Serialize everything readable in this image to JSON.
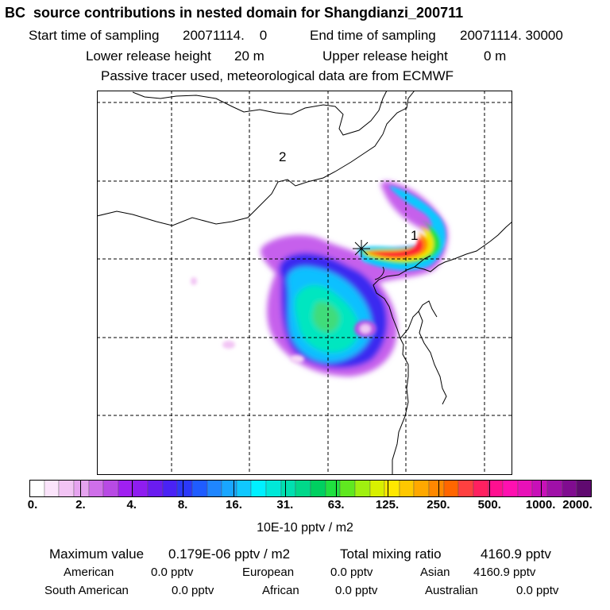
{
  "header": {
    "title": "BC  source contributions in nested domain for Shangdianzi_200711",
    "start_label": "Start time of sampling",
    "start_value": "20071114.    0",
    "end_label": "End time of sampling",
    "end_value": "20071114. 30000",
    "lower_label": "Lower release height",
    "lower_value": "20 m",
    "upper_label": "Upper release height",
    "upper_value": "0 m",
    "tracer_note": "Passive tracer used, meteorological data are from ECMWF"
  },
  "map": {
    "region_labels": [
      {
        "text": "1"
      },
      {
        "text": "2"
      }
    ]
  },
  "colorbar": {
    "ticks": [
      "0.",
      "2.",
      "4.",
      "8.",
      "16.",
      "31.",
      "63.",
      "125.",
      "250.",
      "500.",
      "1000.",
      "2000."
    ],
    "unit": "10E-10 pptv / m2",
    "colors": [
      "#ffffff",
      "#fbe4fb",
      "#f2c4f4",
      "#e6a3ef",
      "#cf6fe9",
      "#b84ae4",
      "#a020f0",
      "#8f1df0",
      "#6a1cf0",
      "#4a22f5",
      "#2b38fa",
      "#1f5cff",
      "#1f86ff",
      "#19a6ff",
      "#10c8ff",
      "#00f0ff",
      "#00e8d8",
      "#00e0b0",
      "#00d88a",
      "#00d060",
      "#20e040",
      "#60e820",
      "#a0f010",
      "#d8f000",
      "#ffe800",
      "#ffc800",
      "#ffa800",
      "#ff8800",
      "#ff6600",
      "#ff4040",
      "#ff2060",
      "#ff1090",
      "#ff10b0",
      "#e810b8",
      "#c810b8",
      "#a010a8",
      "#800c90",
      "#600a70"
    ]
  },
  "stats": {
    "max_label": "Maximum value",
    "max_value": "0.179E-06 pptv / m2",
    "total_label": "Total mixing ratio",
    "total_value": "4160.9 pptv",
    "american_label": "American",
    "american_value": "0.0 pptv",
    "european_label": "European",
    "european_value": "0.0 pptv",
    "asian_label": "Asian",
    "asian_value": "4160.9 pptv",
    "south_american_label": "South American",
    "south_american_value": "0.0 pptv",
    "african_label": "African",
    "african_value": "0.0 pptv",
    "australian_label": "Australian",
    "australian_value": "0.0 pptv"
  }
}
